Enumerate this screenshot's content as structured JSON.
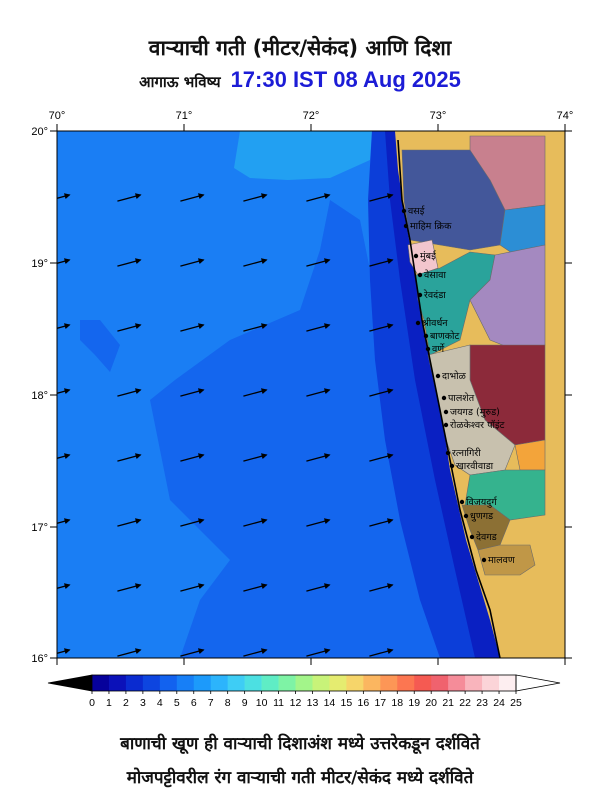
{
  "header": {
    "title": "वाऱ्याची गती (मीटर/सेकंद) आणि दिशा",
    "forecast_label": "आगाऊ भविष्य",
    "forecast_time": "17:30 IST 08 Aug 2025"
  },
  "axes": {
    "lon_labels": [
      "70°",
      "71°",
      "72°",
      "73°",
      "74°"
    ],
    "lat_labels": [
      "20°",
      "19°",
      "18°",
      "17°",
      "16°"
    ]
  },
  "places": [
    "वसई",
    "माहिम क्रिक",
    "मुंबई",
    "वेसावा",
    "रेवदंडा",
    "श्रीवर्धन",
    "बाणकोट",
    "वर्णे",
    "दाभोळ",
    "पालशेत",
    "जयगड (मुरुड)",
    "रोळकेश्वर पॉइंट",
    "रत्नागिरी",
    "खारवीवाडा",
    "विजयदुर्ग",
    "धुणगड",
    "देवगड",
    "मालवण"
  ],
  "colorbar": {
    "ticks": [
      "0",
      "1",
      "2",
      "3",
      "4",
      "5",
      "6",
      "7",
      "8",
      "9",
      "10",
      "11",
      "12",
      "13",
      "14",
      "15",
      "16",
      "17",
      "18",
      "19",
      "20",
      "21",
      "22",
      "23",
      "24",
      "25"
    ],
    "colors": [
      "#06019b",
      "#0b11b9",
      "#0a2bd0",
      "#0d45e0",
      "#1262ef",
      "#177ff7",
      "#1c9afb",
      "#2cb4fc",
      "#3ecdf5",
      "#4ce0e2",
      "#5fedc5",
      "#7ef3a5",
      "#a3f58a",
      "#c8f379",
      "#e5ec70",
      "#f6d56a",
      "#fbb660",
      "#fd9656",
      "#fc7651",
      "#f55a52",
      "#f0626e",
      "#f58c99",
      "#f9b4bc",
      "#fbd4d8",
      "#fdeef0"
    ],
    "under_color": "#000000",
    "over_color": "#ffffff"
  },
  "footer": {
    "line1": "बाणाची खूण ही वाऱ्याची  दिशाअंश मध्ये उत्तरेकडून दर्शविते",
    "line2": "मोजपट्टीवरील रंग वाऱ्याची गती मीटर/सेकंद मध्ये दर्शविते"
  },
  "region_colors": {
    "sea_light": "#22a0f2",
    "sea_main": "#1a7ef4",
    "sea_mid": "#1466ee",
    "sea_dark": "#0c3ed9",
    "sea_darkest": "#0a20c2",
    "land": "#e7bc5b",
    "districts": [
      "#c8808e",
      "#43579a",
      "#2c8ed5",
      "#f2c6cd",
      "#2aa39b",
      "#a489c0",
      "#8c2a3a",
      "#c8c1ae",
      "#f3a43a",
      "#35b38e",
      "#8c7034",
      "#c09747"
    ]
  },
  "wind": {
    "direction_deg_from_north": 255,
    "rows": 8,
    "cols": 8
  }
}
